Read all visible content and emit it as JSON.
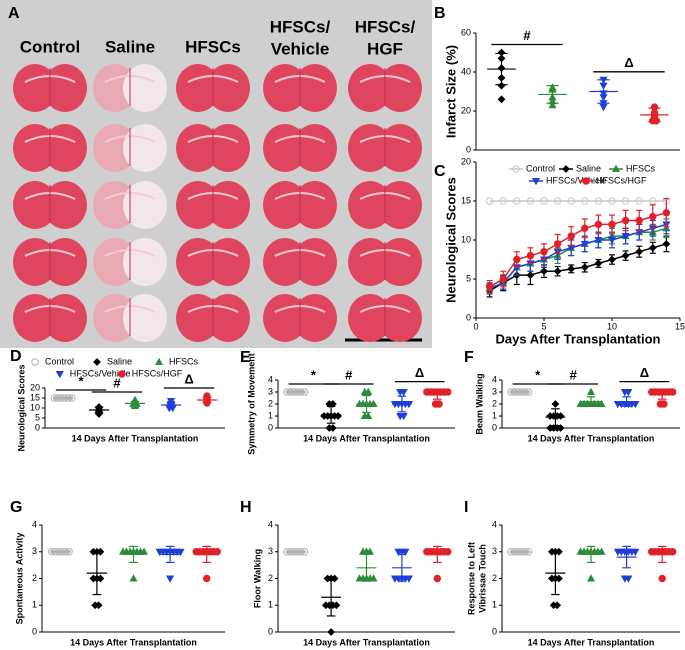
{
  "panel_a": {
    "label": "A",
    "columns": [
      [
        "Control"
      ],
      [
        "Saline"
      ],
      [
        "HFSCs"
      ],
      [
        "HFSCs/",
        "Vehicle"
      ],
      [
        "HFSCs/",
        "HGF"
      ]
    ]
  },
  "chart_data": [
    {
      "panel": "B",
      "type": "dot",
      "ylabel": "Infarct Size (%)",
      "ylim": [
        0,
        60
      ],
      "yticks": [
        0,
        20,
        40,
        60
      ],
      "annotations": [
        "#",
        "Δ"
      ],
      "groups": [
        {
          "color": "#000000",
          "marker": "diamond",
          "values": [
            50,
            47,
            42,
            37,
            33,
            26
          ],
          "mean": 41.5,
          "sd": 8
        },
        {
          "color": "#2e8b3a",
          "marker": "triangle",
          "values": [
            32,
            31,
            27,
            25,
            23
          ],
          "mean": 28.5,
          "sd": 4.5
        },
        {
          "color": "#1f3fd6",
          "marker": "triangle-down",
          "values": [
            36,
            33,
            29,
            27,
            24,
            22
          ],
          "mean": 30,
          "sd": 6
        },
        {
          "color": "#e0202a",
          "marker": "circle",
          "values": [
            22,
            19,
            18,
            17,
            15,
            15
          ],
          "mean": 18,
          "sd": 3.5
        }
      ]
    },
    {
      "panel": "C",
      "type": "line",
      "xlabel": "Days After Transplantation",
      "ylabel": "Neurological Scores",
      "legend": "top",
      "xlim": [
        0,
        15
      ],
      "xticks": [
        0,
        5,
        10,
        15
      ],
      "ylim": [
        0,
        20
      ],
      "yticks": [
        0,
        5,
        10,
        15,
        20
      ],
      "x": [
        1,
        2,
        3,
        4,
        5,
        6,
        7,
        8,
        9,
        10,
        11,
        12,
        13,
        14
      ],
      "series": [
        {
          "name": "Control",
          "color": "#c8c8c8",
          "marker": "open-circle",
          "values": [
            15,
            15,
            15,
            15,
            15,
            15,
            15,
            15,
            15,
            15,
            15,
            15,
            15,
            15
          ]
        },
        {
          "name": "Saline",
          "color": "#000000",
          "marker": "diamond",
          "values": [
            3.5,
            4.5,
            5.5,
            5.5,
            6,
            6,
            6.3,
            6.5,
            7,
            7.5,
            8,
            8.5,
            9,
            9.5
          ],
          "errors": [
            0.8,
            1,
            1.2,
            1.2,
            0.8,
            0.6,
            0.5,
            0.6,
            0.5,
            0.6,
            0.6,
            0.7,
            0.7,
            1
          ]
        },
        {
          "name": "HFSCs",
          "color": "#2e8b3a",
          "marker": "triangle",
          "values": [
            3.8,
            4.5,
            6.5,
            7,
            7.5,
            8,
            9,
            9.5,
            10,
            10.5,
            10.5,
            11,
            11,
            11.5
          ],
          "errors": [
            0.7,
            0.8,
            1,
            1,
            1,
            1,
            1,
            1,
            1,
            1,
            1,
            1,
            1,
            1.2
          ]
        },
        {
          "name": "HFSCs/Vehicle",
          "color": "#1f3fd6",
          "marker": "triangle-down",
          "values": [
            3.8,
            4.5,
            6.5,
            7,
            7.5,
            8.5,
            9,
            9.5,
            10,
            10,
            10.5,
            11,
            11.5,
            12
          ],
          "errors": [
            0.7,
            0.8,
            1,
            1,
            1,
            1,
            1,
            1,
            1,
            1,
            1,
            1,
            1,
            1.2
          ]
        },
        {
          "name": "HFSCs/HGF",
          "color": "#e0202a",
          "marker": "circle",
          "values": [
            4,
            5,
            7.5,
            8,
            8.5,
            9.5,
            10.5,
            11.5,
            12,
            12,
            12.5,
            12.5,
            13,
            13.5
          ],
          "errors": [
            0.8,
            1,
            1,
            1,
            1,
            1.2,
            1.2,
            1.2,
            1.2,
            1.2,
            1.3,
            1.3,
            1.5,
            1.8
          ]
        }
      ]
    },
    {
      "panel": "D",
      "type": "dot",
      "xlabel": "14 Days After Transplantation",
      "ylabel": "Neurological Scores",
      "legend": "top",
      "ylim": [
        0,
        20
      ],
      "yticks": [
        0,
        5,
        10,
        15,
        20
      ],
      "annotations": [
        "*",
        "#",
        "Δ"
      ],
      "groups": [
        {
          "name": "Control",
          "color": "#b0b0b0",
          "marker": "open-circle",
          "values": [
            15,
            15,
            15,
            15,
            15,
            15
          ],
          "mean": 15,
          "sd": 0
        },
        {
          "name": "Saline",
          "color": "#000000",
          "marker": "diamond",
          "values": [
            10.5,
            10,
            9,
            8.5,
            8,
            7
          ],
          "mean": 9,
          "sd": 1.5
        },
        {
          "name": "HFSCs",
          "color": "#2e8b3a",
          "marker": "triangle",
          "values": [
            14,
            13,
            12,
            12,
            11.5,
            11
          ],
          "mean": 12.3,
          "sd": 1
        },
        {
          "name": "HFSCs/Vehicle",
          "color": "#1f3fd6",
          "marker": "triangle-down",
          "values": [
            13.5,
            12,
            11.5,
            11,
            10,
            10
          ],
          "mean": 11.5,
          "sd": 1.2
        },
        {
          "name": "HFSCs/HGF",
          "color": "#e0202a",
          "marker": "circle",
          "values": [
            16,
            15,
            14.5,
            14,
            13.5,
            12.5
          ],
          "mean": 14,
          "sd": 1.2
        }
      ]
    },
    {
      "panel": "E",
      "type": "dot",
      "xlabel": "14 Days After Transplantation",
      "ylabel": "Symmetry of Movement",
      "ylim": [
        0,
        4
      ],
      "yticks": [
        0,
        1,
        2,
        3,
        4
      ],
      "annotations": [
        "*",
        "#",
        "Δ"
      ],
      "groups": [
        {
          "color": "#b0b0b0",
          "marker": "open-circle",
          "values": [
            3,
            3,
            3,
            3,
            3,
            3
          ],
          "mean": 3,
          "sd": 0
        },
        {
          "color": "#000000",
          "marker": "diamond",
          "values": [
            2,
            2,
            1,
            1,
            1,
            1,
            1,
            0,
            0
          ],
          "mean": 1.1,
          "sd": 0.7
        },
        {
          "color": "#2e8b3a",
          "marker": "triangle",
          "values": [
            3,
            3,
            2,
            2,
            2,
            2,
            2,
            1,
            1
          ],
          "mean": 2,
          "sd": 0.7
        },
        {
          "color": "#1f3fd6",
          "marker": "triangle-down",
          "values": [
            3,
            3,
            2,
            2,
            2,
            2,
            2,
            1,
            1
          ],
          "mean": 2,
          "sd": 0.65
        },
        {
          "color": "#e0202a",
          "marker": "circle",
          "values": [
            3,
            3,
            3,
            3,
            3,
            3,
            3,
            2,
            2
          ],
          "mean": 2.8,
          "sd": 0.4
        }
      ]
    },
    {
      "panel": "F",
      "type": "dot",
      "xlabel": "14 Days After Transplantation",
      "ylabel": "Beam Walking",
      "ylim": [
        0,
        4
      ],
      "yticks": [
        0,
        1,
        2,
        3,
        4
      ],
      "annotations": [
        "*",
        "#",
        "Δ"
      ],
      "groups": [
        {
          "color": "#b0b0b0",
          "marker": "open-circle",
          "values": [
            3,
            3,
            3,
            3,
            3,
            3
          ],
          "mean": 3,
          "sd": 0
        },
        {
          "color": "#000000",
          "marker": "diamond",
          "values": [
            2,
            1,
            1,
            1,
            1,
            0,
            0,
            0,
            0
          ],
          "mean": 0.9,
          "sd": 0.7
        },
        {
          "color": "#2e8b3a",
          "marker": "triangle",
          "values": [
            3,
            2,
            2,
            2,
            2,
            2,
            2,
            2
          ],
          "mean": 2.2,
          "sd": 0.4
        },
        {
          "color": "#1f3fd6",
          "marker": "triangle-down",
          "values": [
            3,
            3,
            2,
            2,
            2,
            2,
            2,
            2
          ],
          "mean": 2.2,
          "sd": 0.4
        },
        {
          "color": "#e0202a",
          "marker": "circle",
          "values": [
            3,
            3,
            3,
            3,
            3,
            3,
            3,
            2,
            2
          ],
          "mean": 2.8,
          "sd": 0.4
        }
      ]
    },
    {
      "panel": "G",
      "type": "dot",
      "xlabel": "14 Days After Transplantation",
      "ylabel": "Spontaneous Activity",
      "ylim": [
        0,
        4
      ],
      "yticks": [
        0,
        1,
        2,
        3,
        4
      ],
      "groups": [
        {
          "color": "#b0b0b0",
          "marker": "open-circle",
          "values": [
            3,
            3,
            3,
            3,
            3,
            3
          ],
          "mean": 3,
          "sd": 0
        },
        {
          "color": "#000000",
          "marker": "diamond",
          "values": [
            3,
            3,
            3,
            2,
            2,
            2,
            1,
            1
          ],
          "mean": 2.2,
          "sd": 0.8
        },
        {
          "color": "#2e8b3a",
          "marker": "triangle",
          "values": [
            3,
            3,
            3,
            3,
            3,
            3,
            3,
            2
          ],
          "mean": 2.9,
          "sd": 0.3
        },
        {
          "color": "#1f3fd6",
          "marker": "triangle-down",
          "values": [
            3,
            3,
            3,
            3,
            3,
            3,
            3,
            2
          ],
          "mean": 2.9,
          "sd": 0.3
        },
        {
          "color": "#e0202a",
          "marker": "circle",
          "values": [
            3,
            3,
            3,
            3,
            3,
            3,
            3,
            2
          ],
          "mean": 2.9,
          "sd": 0.3
        }
      ]
    },
    {
      "panel": "H",
      "type": "dot",
      "xlabel": "14 Days After Transplantation",
      "ylabel": "Floor Walking",
      "ylim": [
        0,
        4
      ],
      "yticks": [
        0,
        1,
        2,
        3,
        4
      ],
      "groups": [
        {
          "color": "#b0b0b0",
          "marker": "open-circle",
          "values": [
            3,
            3,
            3,
            3,
            3,
            3
          ],
          "mean": 3,
          "sd": 0
        },
        {
          "color": "#000000",
          "marker": "diamond",
          "values": [
            2,
            2,
            2,
            1,
            1,
            1,
            1,
            0
          ],
          "mean": 1.3,
          "sd": 0.7
        },
        {
          "color": "#2e8b3a",
          "marker": "triangle",
          "values": [
            3,
            3,
            3,
            2,
            2,
            2,
            2,
            2
          ],
          "mean": 2.4,
          "sd": 0.5
        },
        {
          "color": "#1f3fd6",
          "marker": "triangle-down",
          "values": [
            3,
            3,
            3,
            2,
            2,
            2,
            2,
            2
          ],
          "mean": 2.4,
          "sd": 0.5
        },
        {
          "color": "#e0202a",
          "marker": "circle",
          "values": [
            3,
            3,
            3,
            3,
            3,
            3,
            3,
            2
          ],
          "mean": 2.9,
          "sd": 0.3
        }
      ]
    },
    {
      "panel": "I",
      "type": "dot",
      "xlabel": "14 Days After Transplantation",
      "ylabel": [
        "Response to Left",
        "Vibrissae Touch"
      ],
      "ylim": [
        0,
        4
      ],
      "yticks": [
        0,
        1,
        2,
        3,
        4
      ],
      "groups": [
        {
          "color": "#b0b0b0",
          "marker": "open-circle",
          "values": [
            3,
            3,
            3,
            3,
            3,
            3
          ],
          "mean": 3,
          "sd": 0
        },
        {
          "color": "#000000",
          "marker": "diamond",
          "values": [
            3,
            3,
            3,
            2,
            2,
            2,
            1,
            1
          ],
          "mean": 2.2,
          "sd": 0.8
        },
        {
          "color": "#2e8b3a",
          "marker": "triangle",
          "values": [
            3,
            3,
            3,
            3,
            3,
            3,
            3,
            2
          ],
          "mean": 2.9,
          "sd": 0.3
        },
        {
          "color": "#1f3fd6",
          "marker": "triangle-down",
          "values": [
            3,
            3,
            3,
            3,
            3,
            3,
            2,
            2
          ],
          "mean": 2.8,
          "sd": 0.4
        },
        {
          "color": "#e0202a",
          "marker": "circle",
          "values": [
            3,
            3,
            3,
            3,
            3,
            3,
            3,
            2
          ],
          "mean": 2.9,
          "sd": 0.3
        }
      ]
    }
  ]
}
